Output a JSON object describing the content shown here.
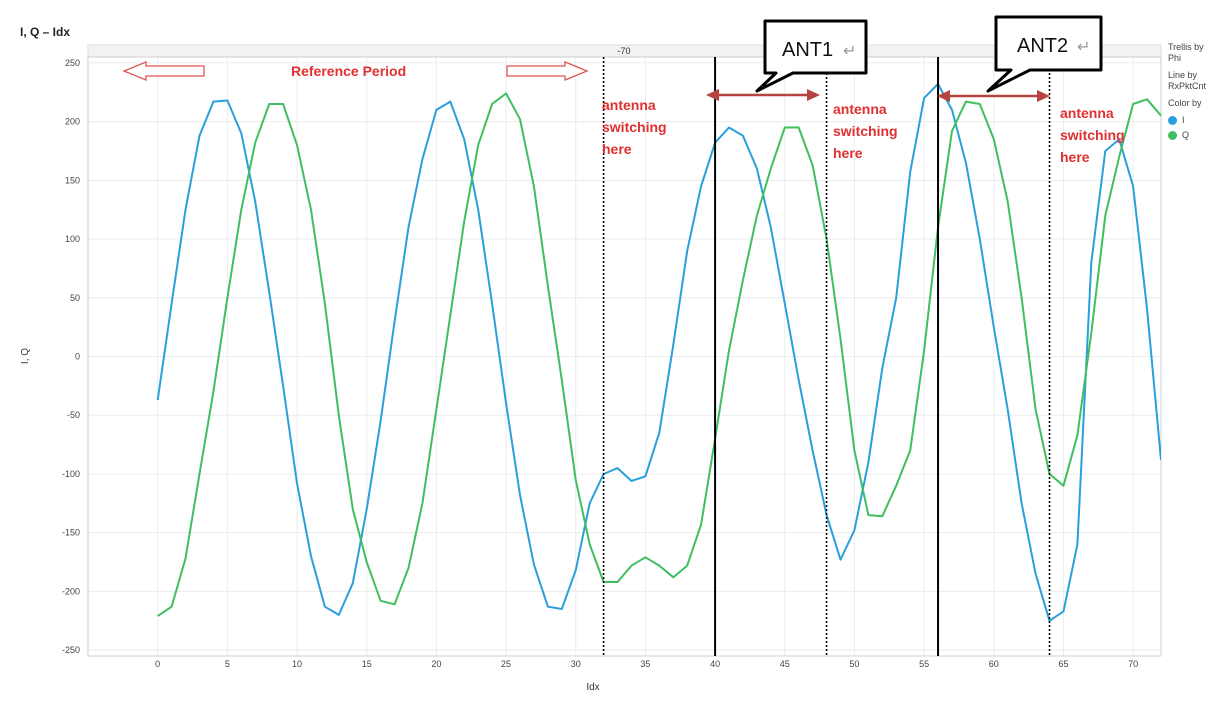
{
  "chart_data": {
    "type": "line",
    "title": "I, Q – Idx",
    "panel_label": "-70",
    "xlabel": "Idx",
    "ylabel": "I, Q",
    "xlim": [
      -5,
      72
    ],
    "ylim": [
      -255,
      255
    ],
    "xticks": [
      0,
      5,
      10,
      15,
      20,
      25,
      30,
      35,
      40,
      45,
      50,
      55,
      60,
      65,
      70
    ],
    "yticks": [
      250,
      200,
      150,
      100,
      50,
      0,
      -50,
      -100,
      -150,
      -200,
      -250
    ],
    "grid": true,
    "series": [
      {
        "name": "I",
        "color": "#2a9fdb",
        "x": [
          0,
          1,
          2,
          3,
          4,
          5,
          6,
          7,
          8,
          9,
          10,
          11,
          12,
          13,
          14,
          15,
          16,
          17,
          18,
          19,
          20,
          21,
          22,
          23,
          24,
          25,
          26,
          27,
          28,
          29,
          30,
          31,
          32,
          33,
          34,
          35,
          36,
          37,
          38,
          39,
          40,
          41,
          42,
          43,
          44,
          45,
          46,
          47,
          48,
          49,
          50,
          51,
          52,
          53,
          54,
          55,
          56,
          57,
          58,
          59,
          60,
          61,
          62,
          63,
          64,
          65,
          66,
          67,
          68,
          69,
          70,
          71,
          72
        ],
        "values": [
          -37,
          45,
          125,
          188,
          217,
          218,
          190,
          132,
          55,
          -25,
          -108,
          -170,
          -213,
          -220,
          -193,
          -130,
          -55,
          30,
          110,
          168,
          210,
          217,
          185,
          125,
          45,
          -40,
          -118,
          -177,
          -213,
          -215,
          -182,
          -125,
          -100,
          -95,
          -106,
          -102,
          -65,
          10,
          90,
          145,
          182,
          195,
          188,
          160,
          110,
          45,
          -20,
          -80,
          -135,
          -173,
          -148,
          -90,
          -10,
          50,
          157,
          220,
          232,
          210,
          165,
          100,
          25,
          -45,
          -125,
          -185,
          -225,
          -217,
          -160,
          80,
          175,
          185,
          145,
          40,
          -88
        ]
      },
      {
        "name": "Q",
        "color": "#3fbf5f",
        "x": [
          0,
          1,
          2,
          3,
          4,
          5,
          6,
          7,
          8,
          9,
          10,
          11,
          12,
          13,
          14,
          15,
          16,
          17,
          18,
          19,
          20,
          21,
          22,
          23,
          24,
          25,
          26,
          27,
          28,
          29,
          30,
          31,
          32,
          33,
          34,
          35,
          36,
          37,
          38,
          39,
          40,
          41,
          42,
          43,
          44,
          45,
          46,
          47,
          48,
          49,
          50,
          51,
          52,
          53,
          54,
          55,
          56,
          57,
          58,
          59,
          60,
          61,
          62,
          63,
          64,
          65,
          66,
          67,
          68,
          69,
          70,
          71,
          72
        ],
        "values": [
          -221,
          -213,
          -172,
          -100,
          -30,
          50,
          125,
          182,
          215,
          215,
          180,
          125,
          45,
          -50,
          -130,
          -175,
          -208,
          -211,
          -180,
          -125,
          -45,
          35,
          115,
          180,
          215,
          224,
          202,
          145,
          60,
          -20,
          -105,
          -160,
          -192,
          -192,
          -178,
          -171,
          -178,
          -188,
          -178,
          -143,
          -70,
          5,
          65,
          120,
          160,
          195,
          195,
          163,
          100,
          15,
          -80,
          -135,
          -136,
          -110,
          -80,
          5,
          110,
          192,
          217,
          215,
          185,
          132,
          50,
          -45,
          -100,
          -110,
          -67,
          20,
          120,
          170,
          215,
          219,
          205
        ]
      }
    ],
    "vlines": [
      {
        "x": 32,
        "style": "dotted"
      },
      {
        "x": 40,
        "style": "solid"
      },
      {
        "x": 48,
        "style": "dotted"
      },
      {
        "x": 56,
        "style": "solid"
      },
      {
        "x": 64,
        "style": "dotted"
      }
    ],
    "annotations": {
      "reference_period": "Reference Period",
      "antenna_switching": [
        "antenna switching here",
        "antenna switching here",
        "antenna switching here"
      ],
      "ant1": "ANT1",
      "ant2": "ANT2"
    },
    "legend": {
      "trellis_label": "Trellis by",
      "trellis_value": "Phi",
      "line_label": "Line by",
      "line_value": "RxPktCnt",
      "color_label": "Color by",
      "items": [
        "I",
        "Q"
      ]
    }
  }
}
